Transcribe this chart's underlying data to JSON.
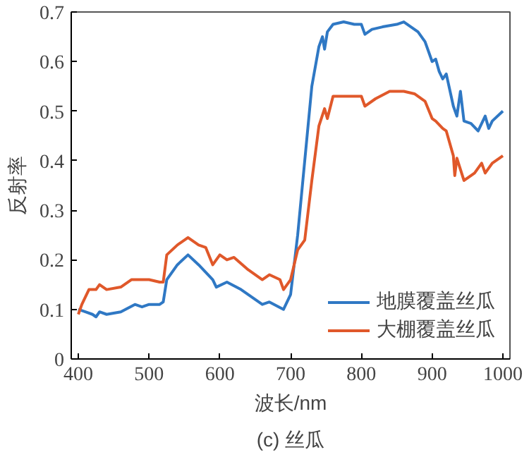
{
  "chart_data": {
    "type": "line",
    "xlabel": "波长/nm",
    "ylabel": "反射率",
    "annotations": [
      "(c) 丝瓜"
    ],
    "xlim": [
      390,
      1010
    ],
    "ylim": [
      0,
      0.7
    ],
    "xticks": [
      400,
      500,
      600,
      700,
      800,
      900,
      1000
    ],
    "yticks": [
      0,
      0.1,
      0.2,
      0.3,
      0.4,
      0.5,
      0.6,
      0.7
    ],
    "grid": false,
    "legend": "bottom right",
    "line_style": "solid",
    "marker": "none",
    "series": [
      {
        "name": "地膜覆盖丝瓜",
        "color": "#2f78c4",
        "x": [
          400,
          410,
          420,
          425,
          430,
          440,
          460,
          480,
          490,
          500,
          515,
          520,
          525,
          540,
          555,
          570,
          590,
          595,
          610,
          630,
          650,
          660,
          670,
          690,
          700,
          710,
          720,
          730,
          740,
          745,
          748,
          752,
          760,
          775,
          790,
          800,
          805,
          815,
          830,
          850,
          860,
          870,
          880,
          890,
          900,
          905,
          910,
          915,
          920,
          930,
          935,
          940,
          945,
          955,
          965,
          975,
          980,
          985,
          1000
        ],
        "values": [
          0.1,
          0.095,
          0.09,
          0.085,
          0.095,
          0.09,
          0.095,
          0.11,
          0.105,
          0.11,
          0.11,
          0.115,
          0.16,
          0.19,
          0.21,
          0.19,
          0.16,
          0.145,
          0.155,
          0.14,
          0.12,
          0.11,
          0.115,
          0.1,
          0.13,
          0.25,
          0.4,
          0.55,
          0.63,
          0.65,
          0.625,
          0.66,
          0.675,
          0.68,
          0.675,
          0.675,
          0.655,
          0.665,
          0.67,
          0.675,
          0.68,
          0.67,
          0.66,
          0.64,
          0.6,
          0.605,
          0.58,
          0.565,
          0.575,
          0.51,
          0.49,
          0.54,
          0.48,
          0.475,
          0.46,
          0.49,
          0.465,
          0.48,
          0.5
        ]
      },
      {
        "name": "大棚覆盖丝瓜",
        "color": "#e0582a",
        "x": [
          400,
          405,
          415,
          425,
          430,
          440,
          460,
          475,
          490,
          500,
          515,
          520,
          525,
          540,
          555,
          570,
          580,
          590,
          600,
          610,
          620,
          640,
          660,
          670,
          685,
          690,
          700,
          710,
          720,
          730,
          740,
          748,
          752,
          760,
          780,
          800,
          805,
          820,
          840,
          860,
          875,
          890,
          900,
          905,
          915,
          920,
          930,
          932,
          935,
          945,
          960,
          970,
          975,
          985,
          1000
        ],
        "values": [
          0.09,
          0.11,
          0.14,
          0.14,
          0.15,
          0.14,
          0.145,
          0.16,
          0.16,
          0.16,
          0.155,
          0.155,
          0.21,
          0.23,
          0.245,
          0.23,
          0.225,
          0.19,
          0.21,
          0.2,
          0.205,
          0.18,
          0.16,
          0.17,
          0.16,
          0.14,
          0.16,
          0.22,
          0.24,
          0.36,
          0.47,
          0.505,
          0.485,
          0.53,
          0.53,
          0.53,
          0.51,
          0.525,
          0.54,
          0.54,
          0.535,
          0.52,
          0.485,
          0.48,
          0.465,
          0.46,
          0.41,
          0.37,
          0.405,
          0.36,
          0.375,
          0.395,
          0.375,
          0.395,
          0.41
        ]
      }
    ]
  }
}
